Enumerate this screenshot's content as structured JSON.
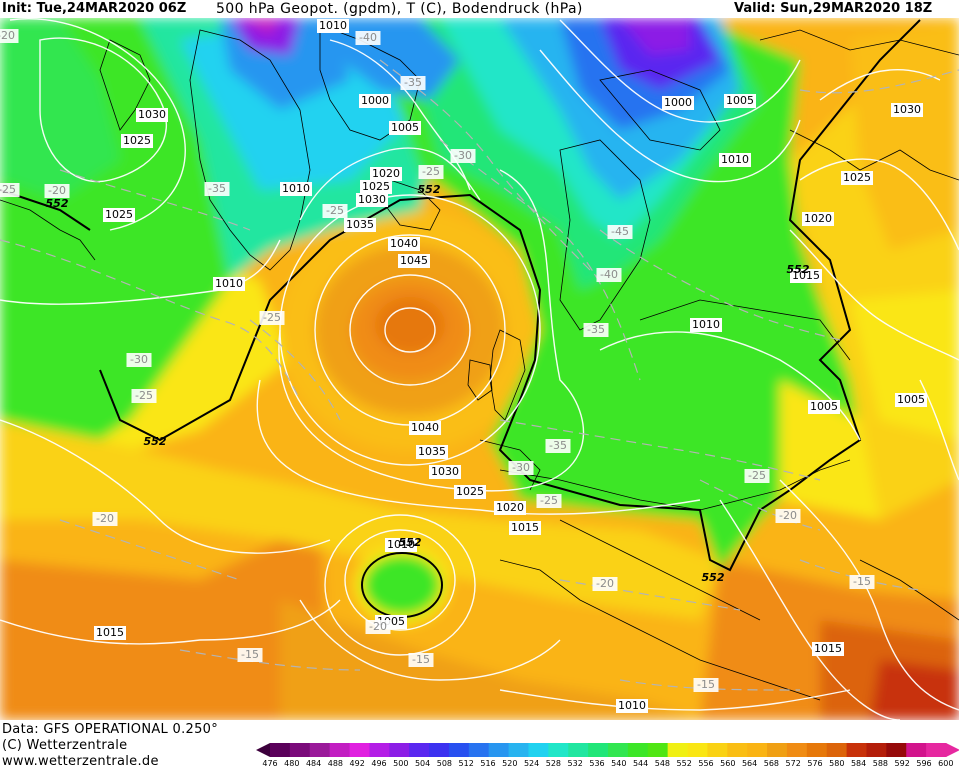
{
  "header": {
    "init": "Init: Tue,24MAR2020 06Z",
    "title": "500 hPa Geopot. (gpdm), T (C), Bodendruck (hPa)",
    "valid": "Valid: Sun,29MAR2020 18Z"
  },
  "footer": {
    "model": "Data: GFS OPERATIONAL 0.250°",
    "copyright": "(C) Wetterzentrale",
    "url": "www.wetterzentrale.de"
  },
  "legend": {
    "unit": "gpdm",
    "ticks": [
      "476",
      "480",
      "484",
      "488",
      "492",
      "496",
      "500",
      "504",
      "508",
      "512",
      "516",
      "520",
      "524",
      "528",
      "532",
      "536",
      "540",
      "544",
      "548",
      "552",
      "556",
      "560",
      "564",
      "568",
      "572",
      "576",
      "580",
      "584",
      "588",
      "592",
      "596",
      "600"
    ],
    "colors": [
      "#5a005a",
      "#7a0a7a",
      "#9a1a9a",
      "#c21ec2",
      "#e020e0",
      "#b41ee6",
      "#8c1ee6",
      "#5a28f0",
      "#3c32f0",
      "#2850f0",
      "#2873f0",
      "#2896f0",
      "#28b4f0",
      "#20d2f0",
      "#20e6c8",
      "#20e6a0",
      "#20e678",
      "#32e650",
      "#3ce628",
      "#50e614",
      "#f0f014",
      "#fae614",
      "#fad214",
      "#fabe14",
      "#fab414",
      "#f0a014",
      "#f08c14",
      "#e6780a",
      "#dc640a",
      "#c8320a",
      "#b41e0a",
      "#960a0a",
      "#d2148c",
      "#e628a0"
    ]
  },
  "map": {
    "isobar_labels": [
      "1010",
      "1030",
      "1025",
      "1025",
      "1010",
      "1000",
      "1005",
      "1020",
      "1025",
      "1030",
      "1035",
      "1040",
      "1045",
      "1010",
      "1040",
      "1035",
      "1030",
      "1025",
      "1020",
      "1015",
      "1010",
      "1005",
      "1015",
      "1000",
      "1005",
      "1010",
      "1030",
      "1025",
      "1020",
      "1015",
      "1010",
      "1005",
      "1005",
      "1010",
      "1015"
    ],
    "temp_labels": [
      "-40",
      "-35",
      "-30",
      "-25",
      "-25",
      "-35",
      "-20",
      "-25",
      "-25",
      "-30",
      "-20",
      "-45",
      "-40",
      "-35",
      "-35",
      "-30",
      "-25",
      "-25",
      "-20",
      "-20",
      "-20",
      "-15",
      "-15",
      "-15",
      "-15",
      "-20",
      "-25"
    ],
    "contour_labels": [
      "552",
      "552",
      "552",
      "552",
      "552",
      "552"
    ]
  }
}
